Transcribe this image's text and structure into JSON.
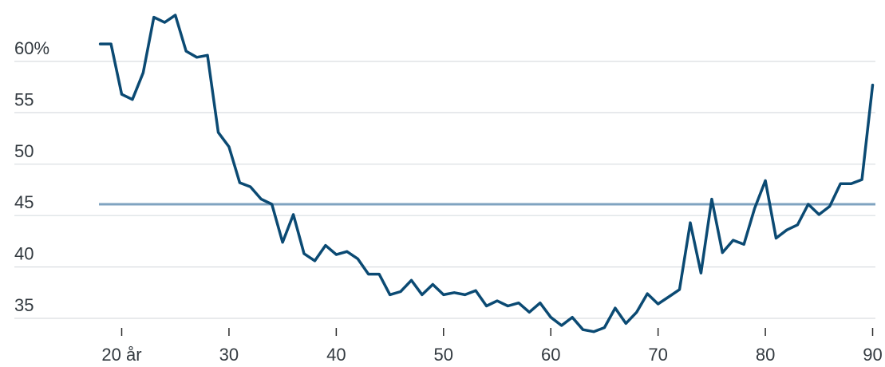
{
  "chart_data": {
    "type": "line",
    "title": "",
    "xlabel": "",
    "ylabel": "",
    "xlim": [
      18,
      90
    ],
    "ylim": [
      33,
      65
    ],
    "x_ticks": [
      {
        "value": 20,
        "label": "20 år"
      },
      {
        "value": 30,
        "label": "30"
      },
      {
        "value": 40,
        "label": "40"
      },
      {
        "value": 50,
        "label": "50"
      },
      {
        "value": 60,
        "label": "60"
      },
      {
        "value": 70,
        "label": "70"
      },
      {
        "value": 80,
        "label": "80"
      },
      {
        "value": 90,
        "label": "90"
      }
    ],
    "y_ticks": [
      {
        "value": 60,
        "label": "60%"
      },
      {
        "value": 55,
        "label": "55"
      },
      {
        "value": 50,
        "label": "50"
      },
      {
        "value": 45,
        "label": "45"
      },
      {
        "value": 40,
        "label": "40"
      },
      {
        "value": 35,
        "label": "35"
      }
    ],
    "grid": "horizontal",
    "reference_line": {
      "value": 46.1,
      "color": "#7fa3c0"
    },
    "series": [
      {
        "color": "#0b4a73",
        "x": [
          18,
          19,
          20,
          21,
          22,
          23,
          24,
          25,
          26,
          27,
          28,
          29,
          30,
          31,
          32,
          33,
          34,
          35,
          36,
          37,
          38,
          39,
          40,
          41,
          42,
          43,
          44,
          45,
          46,
          47,
          48,
          49,
          50,
          51,
          52,
          53,
          54,
          55,
          56,
          57,
          58,
          59,
          60,
          61,
          62,
          63,
          64,
          65,
          66,
          67,
          68,
          69,
          70,
          71,
          72,
          73,
          74,
          75,
          76,
          77,
          78,
          79,
          80,
          81,
          82,
          83,
          84,
          85,
          86,
          87,
          88,
          89,
          90
        ],
        "values": [
          61.7,
          61.7,
          56.8,
          56.3,
          58.9,
          64.3,
          63.8,
          64.5,
          61,
          60.4,
          60.6,
          53.1,
          51.7,
          48.2,
          47.8,
          46.6,
          46.1,
          42.4,
          45.1,
          41.3,
          40.6,
          42.1,
          41.2,
          41.5,
          40.8,
          39.3,
          39.3,
          37.3,
          37.6,
          38.7,
          37.3,
          38.3,
          37.3,
          37.5,
          37.3,
          37.7,
          36.2,
          36.7,
          36.2,
          36.5,
          35.6,
          36.5,
          35.1,
          34.3,
          35.1,
          33.9,
          33.7,
          34.1,
          36,
          34.5,
          35.6,
          37.4,
          36.4,
          37.1,
          37.8,
          44.3,
          39.4,
          46.6,
          41.4,
          42.6,
          42.2,
          45.7,
          48.4,
          42.8,
          43.6,
          44.1,
          46.1,
          45.1,
          45.9,
          48.1,
          48.1,
          48.5,
          57.7
        ]
      }
    ]
  }
}
